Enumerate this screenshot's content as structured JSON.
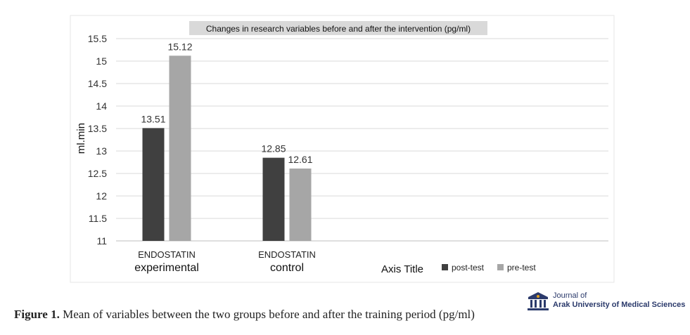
{
  "chart_data": {
    "type": "bar",
    "title": "Changes in research variables before and after the intervention (pg/ml)",
    "ylabel": "ml.min",
    "xlabel": "Axis Title",
    "categories": [
      {
        "line1": "ENDOSTATIN",
        "line2": "experimental"
      },
      {
        "line1": "ENDOSTATIN",
        "line2": "control"
      }
    ],
    "series": [
      {
        "name": "post-test",
        "color": "#404040",
        "values": [
          13.51,
          12.85
        ]
      },
      {
        "name": "pre-test",
        "color": "#a6a6a6",
        "values": [
          15.12,
          12.61
        ]
      }
    ],
    "ylim": [
      11,
      15.5
    ],
    "yticks": [
      "11",
      "11.5",
      "12",
      "12.5",
      "13",
      "13.5",
      "14",
      "14.5",
      "15",
      "15.5"
    ],
    "grid": true,
    "legend": "bottom-right"
  },
  "figure": {
    "caption_label": "Figure 1.",
    "caption_text": " Mean of variables between the two groups before and after the training period (pg/ml)"
  },
  "journal": {
    "line1": "Journal of",
    "line2": "Arak University of Medical Sciences"
  }
}
